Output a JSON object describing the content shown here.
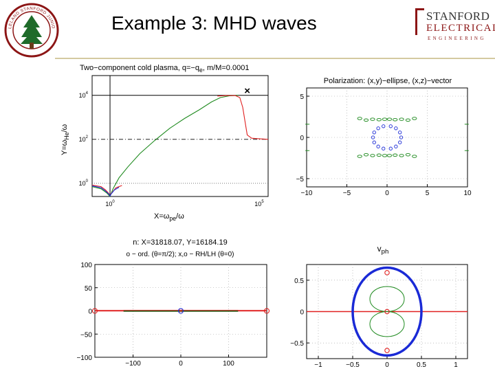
{
  "slide": {
    "title": "Example 3: MHD waves",
    "logo_line1": "STANFORD",
    "logo_line2": "ELECTRICAL",
    "logo_line3": "ENGINEERING",
    "seal_text": "LELAND STANFORD JUNIOR UNIVERSITY"
  },
  "colors": {
    "green": "#1e8a1e",
    "red": "#e02020",
    "blue": "#1a2ad6",
    "black": "#000000"
  },
  "chart_data": [
    {
      "type": "line",
      "title": "Two−component cold plasma, q=−q",
      "title_sub": "e",
      "title_tail": ", m/M=0.0001",
      "xlabel": "X=ω",
      "xlabel_sub": "pe",
      "xlabel_tail": "/ω",
      "ylabel": "Y=ω",
      "ylabel_sub": "He",
      "ylabel_tail": "/ω",
      "x_scale": "log",
      "y_scale": "log",
      "xlim": [
        -0.6,
        5.3
      ],
      "ylim": [
        -0.6,
        4.9
      ],
      "x_ticks": [
        {
          "base": "10",
          "exp": "0",
          "value": 0
        },
        {
          "base": "10",
          "exp": "5",
          "value": 5
        }
      ],
      "y_ticks": [
        {
          "base": "10",
          "exp": "0",
          "value": 0
        },
        {
          "base": "10",
          "exp": "2",
          "value": 2
        },
        {
          "base": "10",
          "exp": "4",
          "value": 4
        }
      ],
      "reference_lines": {
        "x_solid": 0,
        "y_solid": 4,
        "y_dashdot": 2,
        "y_dotted": 0
      },
      "marker": {
        "symbol": "×",
        "x": 4.6,
        "y": 4.21
      },
      "series": [
        {
          "color": "green",
          "points": [
            [
              -0.6,
              -0.15
            ],
            [
              -0.3,
              -0.25
            ],
            [
              -0.1,
              -0.45
            ],
            [
              0.0,
              -0.6
            ],
            [
              0.1,
              -0.25
            ],
            [
              0.3,
              0.25
            ],
            [
              0.6,
              0.75
            ],
            [
              1.0,
              1.35
            ],
            [
              1.5,
              1.95
            ],
            [
              2.0,
              2.5
            ],
            [
              2.5,
              2.95
            ],
            [
              3.0,
              3.35
            ],
            [
              3.4,
              3.7
            ],
            [
              3.7,
              3.9
            ],
            [
              4.0,
              3.98
            ],
            [
              4.3,
              4.0
            ]
          ]
        },
        {
          "color": "red",
          "points": [
            [
              -0.6,
              -0.08
            ],
            [
              -0.3,
              -0.15
            ],
            [
              -0.15,
              -0.3
            ],
            [
              -0.05,
              -0.45
            ],
            [
              0.0,
              -0.55
            ],
            [
              0.05,
              -0.45
            ],
            [
              0.2,
              -0.2
            ],
            [
              0.4,
              -0.1
            ]
          ]
        },
        {
          "color": "blue",
          "points": [
            [
              -0.6,
              -0.12
            ],
            [
              -0.3,
              -0.2
            ],
            [
              -0.15,
              -0.35
            ],
            [
              -0.03,
              -0.5
            ],
            [
              0.0,
              -0.58
            ],
            [
              0.03,
              -0.5
            ],
            [
              0.15,
              -0.3
            ],
            [
              0.3,
              -0.18
            ]
          ]
        },
        {
          "color": "red",
          "points": [
            [
              3.6,
              3.97
            ],
            [
              3.9,
              3.99
            ],
            [
              4.2,
              3.99
            ],
            [
              4.35,
              3.9
            ],
            [
              4.45,
              3.45
            ],
            [
              4.52,
              2.85
            ],
            [
              4.6,
              2.2
            ],
            [
              4.75,
              2.05
            ],
            [
              5.3,
              2.0
            ]
          ]
        }
      ]
    },
    {
      "type": "scatter",
      "title": "Polarization: (x,y)−ellipse, (x,z)−vector",
      "xlim": [
        -10,
        10
      ],
      "ylim": [
        -6,
        6
      ],
      "x_ticks": [
        -10,
        -5,
        0,
        5,
        10
      ],
      "y_ticks": [
        -5,
        0,
        5
      ],
      "x_tick_labels": [
        "−10",
        "−5",
        "0",
        "5",
        "10"
      ],
      "y_tick_labels": [
        "−5",
        "0",
        "5"
      ],
      "blue_ellipses": [
        [
          -1.6,
          0.6
        ],
        [
          -1.75,
          0
        ],
        [
          -1.6,
          -0.6
        ],
        [
          -1.1,
          1.1
        ],
        [
          -1.1,
          -1.1
        ],
        [
          -0.45,
          1.35
        ],
        [
          -0.45,
          -1.35
        ],
        [
          0.45,
          1.35
        ],
        [
          0.45,
          -1.35
        ],
        [
          1.1,
          1.1
        ],
        [
          1.1,
          -1.1
        ],
        [
          1.6,
          0.6
        ],
        [
          1.75,
          0
        ],
        [
          1.6,
          -0.6
        ]
      ],
      "green_ellipses": [
        [
          -3.4,
          2.3
        ],
        [
          -2.6,
          2.1
        ],
        [
          -1.8,
          2.2
        ],
        [
          -1.0,
          2.15
        ],
        [
          -0.3,
          2.2
        ],
        [
          0.3,
          2.2
        ],
        [
          1.0,
          2.15
        ],
        [
          1.8,
          2.2
        ],
        [
          2.6,
          2.1
        ],
        [
          3.4,
          2.3
        ],
        [
          -3.4,
          -2.3
        ],
        [
          -2.6,
          -2.1
        ],
        [
          -1.8,
          -2.2
        ],
        [
          -1.0,
          -2.15
        ],
        [
          -0.3,
          -2.2
        ],
        [
          0.3,
          -2.2
        ],
        [
          1.0,
          -2.15
        ],
        [
          1.8,
          -2.2
        ],
        [
          2.6,
          -2.1
        ],
        [
          3.4,
          -2.3
        ]
      ],
      "green_dashes": [
        [
          -9.9,
          1.6
        ],
        [
          -9.9,
          -1.6
        ],
        [
          9.9,
          1.6
        ],
        [
          9.9,
          -1.6
        ]
      ]
    },
    {
      "type": "line",
      "title": "n: X=31818.07, Y=16184.19",
      "subtitle": "o − ord. (θ=π/2); x,o − RH/LH (θ=0)",
      "xlim": [
        -180,
        180
      ],
      "ylim": [
        -100,
        100
      ],
      "x_ticks": [
        -100,
        0,
        100
      ],
      "y_ticks": [
        -100,
        -50,
        0,
        50,
        100
      ],
      "x_tick_labels": [
        "−100",
        "0",
        "100"
      ],
      "y_tick_labels": [
        "−100",
        "−50",
        "0",
        "50",
        "100"
      ],
      "circles": [
        {
          "x": -180,
          "y": 0,
          "color": "red"
        },
        {
          "x": 0,
          "y": 0,
          "color": "blue"
        },
        {
          "x": 180,
          "y": 0,
          "color": "red"
        }
      ],
      "markers_x": [
        {
          "x": 0,
          "y": 0,
          "color": "red"
        }
      ]
    },
    {
      "type": "line",
      "title": "v",
      "title_sub": "ph",
      "xlim": [
        -0.75,
        0.75
      ],
      "ylim": [
        -0.75,
        0.75
      ],
      "x_ticks": [
        -1,
        -0.5,
        0,
        0.5,
        1
      ],
      "y_ticks": [
        -0.5,
        0,
        0.5
      ],
      "x_tick_labels": [
        "−1",
        "−0.5",
        "0",
        "0.5",
        "1"
      ],
      "y_tick_labels": [
        "−0.5",
        "0",
        "0.5"
      ],
      "blue_ellipse": {
        "cx": 0,
        "cy": 0,
        "rx": 0.5,
        "ry": 0.7
      },
      "green_lobes": {
        "r": 0.2,
        "centers_y": [
          0.2,
          -0.2
        ]
      },
      "red_circles": [
        [
          0,
          0.62
        ],
        [
          0,
          0
        ],
        [
          0,
          -0.62
        ]
      ]
    }
  ]
}
